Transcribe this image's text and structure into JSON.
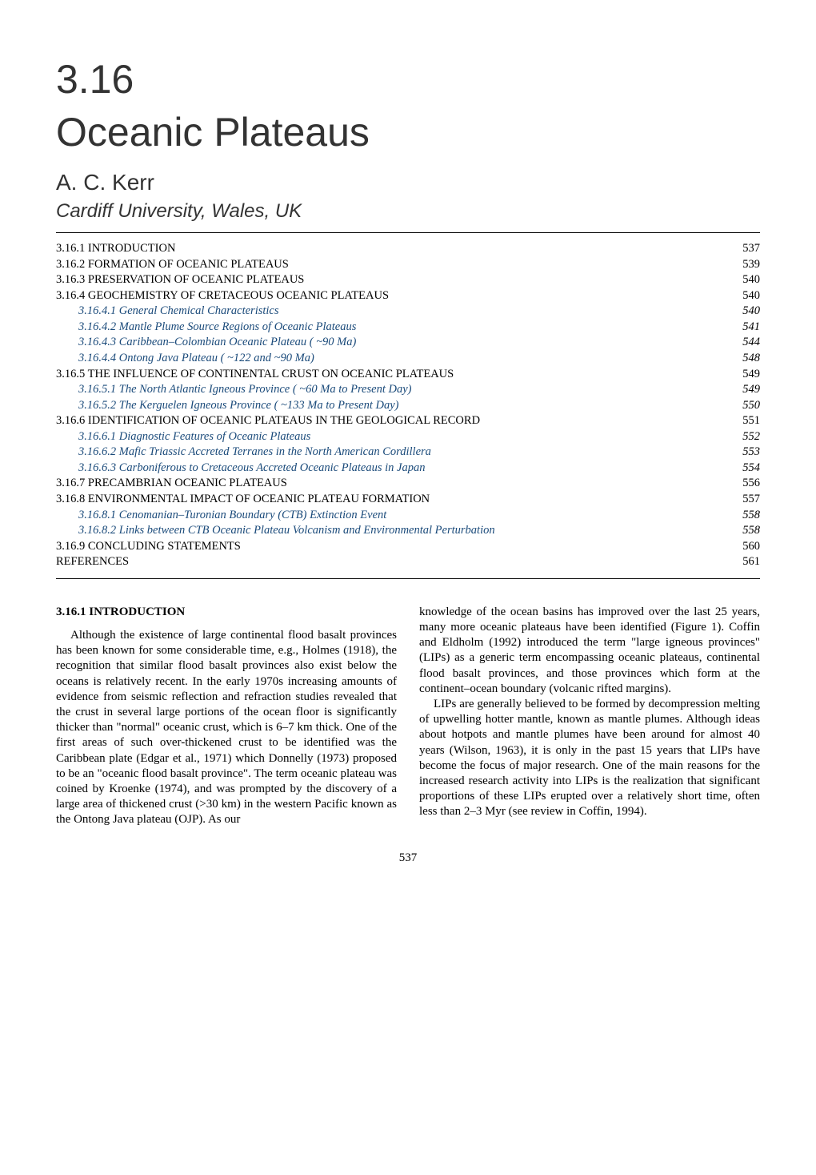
{
  "chapter_number": "3.16",
  "chapter_title": "Oceanic Plateaus",
  "author": "A. C. Kerr",
  "affiliation": "Cardiff University, Wales, UK",
  "toc": [
    {
      "level": 1,
      "num": "3.16.1",
      "title": "INTRODUCTION",
      "page": "537"
    },
    {
      "level": 1,
      "num": "3.16.2",
      "title": "FORMATION OF OCEANIC PLATEAUS",
      "page": "539"
    },
    {
      "level": 1,
      "num": "3.16.3",
      "title": "PRESERVATION OF OCEANIC PLATEAUS",
      "page": "540"
    },
    {
      "level": 1,
      "num": "3.16.4",
      "title": "GEOCHEMISTRY OF CRETACEOUS OCEANIC PLATEAUS",
      "page": "540"
    },
    {
      "level": 2,
      "num": "3.16.4.1",
      "title": "General Chemical Characteristics",
      "page": "540"
    },
    {
      "level": 2,
      "num": "3.16.4.2",
      "title": "Mantle Plume Source Regions of Oceanic Plateaus",
      "page": "541"
    },
    {
      "level": 2,
      "num": "3.16.4.3",
      "title": "Caribbean–Colombian Oceanic Plateau ( ~90 Ma)",
      "page": "544"
    },
    {
      "level": 2,
      "num": "3.16.4.4",
      "title": "Ontong Java Plateau ( ~122 and  ~90 Ma)",
      "page": "548"
    },
    {
      "level": 1,
      "num": "3.16.5",
      "title": "THE INFLUENCE OF CONTINENTAL CRUST ON OCEANIC PLATEAUS",
      "page": "549"
    },
    {
      "level": 2,
      "num": "3.16.5.1",
      "title": "The North Atlantic Igneous Province ( ~60 Ma to Present Day)",
      "page": "549"
    },
    {
      "level": 2,
      "num": "3.16.5.2",
      "title": "The Kerguelen Igneous Province ( ~133 Ma to Present Day)",
      "page": "550"
    },
    {
      "level": 1,
      "num": "3.16.6",
      "title": "IDENTIFICATION OF OCEANIC PLATEAUS IN THE GEOLOGICAL RECORD",
      "page": "551"
    },
    {
      "level": 2,
      "num": "3.16.6.1",
      "title": "Diagnostic Features of Oceanic Plateaus",
      "page": "552"
    },
    {
      "level": 2,
      "num": "3.16.6.2",
      "title": "Mafic Triassic Accreted Terranes in the North American Cordillera",
      "page": "553"
    },
    {
      "level": 2,
      "num": "3.16.6.3",
      "title": "Carboniferous to Cretaceous Accreted Oceanic Plateaus in Japan",
      "page": "554"
    },
    {
      "level": 1,
      "num": "3.16.7",
      "title": "PRECAMBRIAN OCEANIC PLATEAUS",
      "page": "556"
    },
    {
      "level": 1,
      "num": "3.16.8",
      "title": "ENVIRONMENTAL IMPACT OF OCEANIC PLATEAU FORMATION",
      "page": "557"
    },
    {
      "level": 2,
      "num": "3.16.8.1",
      "title": "Cenomanian–Turonian Boundary (CTB) Extinction Event",
      "page": "558"
    },
    {
      "level": 2,
      "num": "3.16.8.2",
      "title": "Links between CTB Oceanic Plateau Volcanism and Environmental Perturbation",
      "page": "558"
    },
    {
      "level": 1,
      "num": "3.16.9",
      "title": "CONCLUDING STATEMENTS",
      "page": "560"
    },
    {
      "level": 1,
      "num": "",
      "title": "REFERENCES",
      "page": "561"
    }
  ],
  "toc_style": {
    "level2_color": "#1a4a7a",
    "border_color": "#000000",
    "font_size": 14.5
  },
  "section_heading": "3.16.1  INTRODUCTION",
  "left_column": "Although the existence of large continental flood basalt provinces has been known for some considerable time, e.g., Holmes (1918), the recognition that similar flood basalt provinces also exist below the oceans is relatively recent. In the early 1970s increasing amounts of evidence from seismic reflection and refraction studies revealed that the crust in several large portions of the ocean floor is significantly thicker than \"normal\" oceanic crust, which is 6–7 km thick. One of the first areas of such over-thickened crust to be identified was the Caribbean plate (Edgar et al., 1971) which Donnelly (1973) proposed to be an \"oceanic flood basalt province\". The term oceanic plateau was coined by Kroenke (1974), and was prompted by the discovery of a large area of thickened crust (>30 km) in the western Pacific known as the Ontong Java plateau (OJP). As our",
  "right_column_p1": "knowledge of the ocean basins has improved over the last 25 years, many more oceanic plateaus have been identified (Figure 1). Coffin and Eldholm (1992) introduced the term \"large igneous provinces\" (LIPs) as a generic term encompassing oceanic plateaus, continental flood basalt provinces, and those provinces which form at the continent–ocean boundary (volcanic rifted margins).",
  "right_column_p2": "LIPs are generally believed to be formed by decompression melting of upwelling hotter mantle, known as mantle plumes. Although ideas about hotpots and mantle plumes have been around for almost 40 years (Wilson, 1963), it is only in the past 15 years that LIPs have become the focus of major research. One of the main reasons for the increased research activity into LIPs is the realization that significant proportions of these LIPs erupted over a relatively short time, often less than 2–3 Myr (see review in Coffin, 1994).",
  "page_number": "537"
}
